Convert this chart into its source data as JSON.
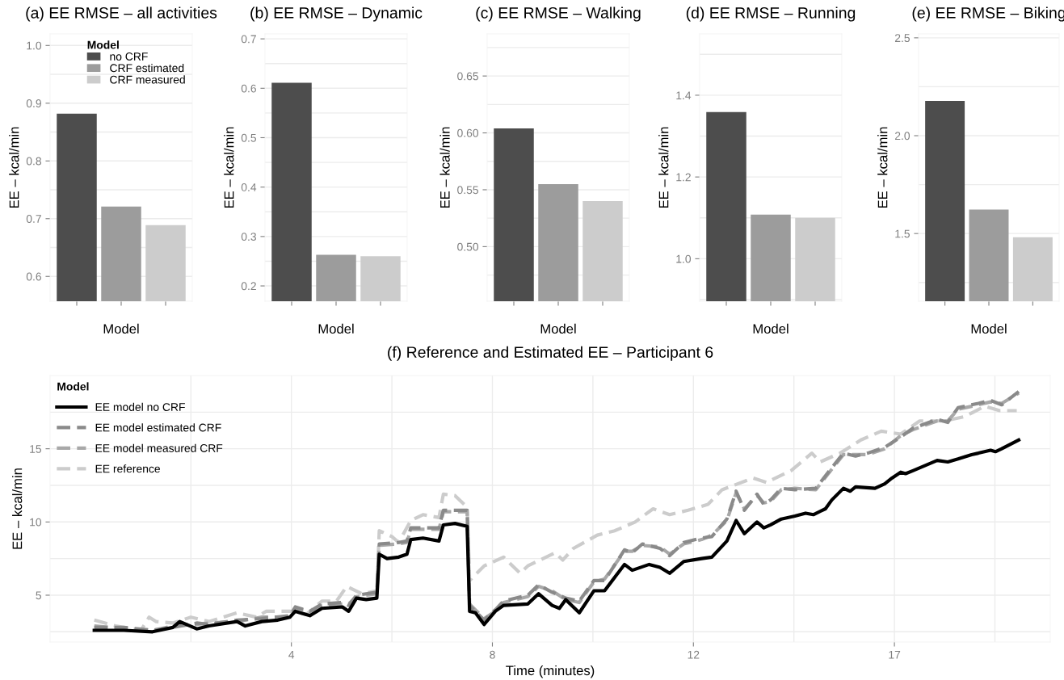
{
  "chart_data": [
    {
      "type": "bar",
      "title": "(a) EE RMSE – all activities",
      "xlabel": "Model",
      "ylabel": "EE – kcal/min",
      "categories": [
        null,
        null,
        null
      ],
      "series": [
        {
          "name": "no CRF",
          "color": "#4d4d4d",
          "values": [
            0.882,
            null,
            null
          ]
        },
        {
          "name": "CRF estimated",
          "color": "#9c9c9c",
          "values": [
            null,
            0.721,
            null
          ]
        },
        {
          "name": "CRF measured",
          "color": "#cccccc",
          "values": [
            null,
            null,
            0.689
          ]
        }
      ],
      "legend_title": "Model",
      "legend": "top right",
      "ylim": [
        0.557,
        1.02
      ],
      "yticks": [
        0.6,
        0.7,
        0.8,
        0.9,
        {
          "value": 1.0,
          "label": "1.0"
        }
      ],
      "grid": "y",
      "tick_labels": "y"
    },
    {
      "type": "bar",
      "title": "(b) EE RMSE – Dynamic",
      "xlabel": "Model",
      "ylabel": "EE – kcal/min",
      "categories": [
        null,
        null,
        null
      ],
      "values": [
        0.611,
        0.263,
        0.26
      ],
      "colors": [
        "#4d4d4d",
        "#9c9c9c",
        "#cccccc"
      ],
      "ylim": [
        0.169,
        0.71
      ],
      "yticks": [
        0.2,
        0.3,
        0.4,
        0.5,
        0.6,
        0.7
      ],
      "grid": "y",
      "tick_labels": "y"
    },
    {
      "type": "bar",
      "title": "(c) EE RMSE – Walking",
      "xlabel": "Model",
      "ylabel": "EE – kcal/min",
      "categories": [
        null,
        null,
        null
      ],
      "values": [
        0.604,
        0.555,
        0.54
      ],
      "colors": [
        "#4d4d4d",
        "#9c9c9c",
        "#cccccc"
      ],
      "ylim": [
        0.452,
        0.687
      ],
      "yticks": [
        {
          "value": 0.5,
          "label": "0.50"
        },
        {
          "value": 0.55,
          "label": "0.55"
        },
        {
          "value": 0.6,
          "label": "0.60"
        },
        {
          "value": 0.65,
          "label": "0.65"
        }
      ],
      "grid": "y",
      "tick_labels": "y"
    },
    {
      "type": "bar",
      "title": "(d) EE RMSE – Running",
      "xlabel": "Model",
      "ylabel": "EE – kcal/min",
      "categories": [
        null,
        null,
        null
      ],
      "values": [
        1.359,
        1.108,
        1.1
      ],
      "colors": [
        "#4d4d4d",
        "#9c9c9c",
        "#cccccc"
      ],
      "ylim": [
        0.896,
        1.55
      ],
      "yticks": [
        {
          "value": 1.0,
          "label": "1.0"
        },
        1.2,
        1.4
      ],
      "grid": "y",
      "tick_labels": "y"
    },
    {
      "type": "bar",
      "title": "(e) EE RMSE – Biking",
      "xlabel": "Model",
      "ylabel": "EE – kcal/min",
      "categories": [
        null,
        null,
        null
      ],
      "values": [
        2.177,
        1.622,
        1.481
      ],
      "colors": [
        "#4d4d4d",
        "#9c9c9c",
        "#cccccc"
      ],
      "ylim": [
        1.154,
        2.52
      ],
      "yticks": [
        1.5,
        {
          "value": 2.0,
          "label": "2.0"
        },
        2.5
      ],
      "grid": "y",
      "tick_labels": "y"
    },
    {
      "type": "line",
      "title": "(f) Reference and Estimated EE – Participant 6",
      "xlabel": "Time (minutes)",
      "ylabel": "EE – kcal/min",
      "legend_title": "Model",
      "legend": "top left",
      "grid": true,
      "xlim": [
        -0.83,
        19.77
      ],
      "xticks": [
        {
          "value": 4.14,
          "label": "4"
        },
        {
          "value": 8.28,
          "label": "8"
        },
        {
          "value": 12.42,
          "label": "12"
        },
        {
          "value": 16.56,
          "label": "17"
        }
      ],
      "ylim": [
        1.8,
        20
      ],
      "yticks": [
        5,
        10,
        15
      ],
      "series": [
        {
          "name": "EE model no CRF",
          "color": "#000000",
          "line_style": "solid",
          "x": [
            0.08,
            0.69,
            1.28,
            1.7,
            1.84,
            2.19,
            2.44,
            3.02,
            3.19,
            3.53,
            3.86,
            4.11,
            4.22,
            4.52,
            4.77,
            5.19,
            5.32,
            5.48,
            5.68,
            5.9,
            5.95,
            6.11,
            6.35,
            6.52,
            6.6,
            6.85,
            7.18,
            7.27,
            7.51,
            7.76,
            7.81,
            7.93,
            8.11,
            8.34,
            8.51,
            9.01,
            9.23,
            9.51,
            9.66,
            9.79,
            10.07,
            10.37,
            10.59,
            11.0,
            11.16,
            11.51,
            11.73,
            11.93,
            12.22,
            12.59,
            12.8,
            13.11,
            13.3,
            13.47,
            13.73,
            13.87,
            14.01,
            14.23,
            14.51,
            14.73,
            14.89,
            15.14,
            15.27,
            15.51,
            15.65,
            15.76,
            16.16,
            16.36,
            16.51,
            16.69,
            16.79,
            16.94,
            17.44,
            17.66,
            17.87,
            18.15,
            18.29,
            18.54,
            18.64,
            18.77,
            19.12
          ],
          "values": [
            2.6,
            2.6,
            2.5,
            2.8,
            3.2,
            2.7,
            2.9,
            3.2,
            2.9,
            3.2,
            3.3,
            3.5,
            3.9,
            3.6,
            4.1,
            4.2,
            3.9,
            4.8,
            4.7,
            4.8,
            7.8,
            7.5,
            7.6,
            7.8,
            8.8,
            8.9,
            8.7,
            9.8,
            9.9,
            9.7,
            3.9,
            3.8,
            3.0,
            3.9,
            4.3,
            4.4,
            5.1,
            4.3,
            4.1,
            4.7,
            3.8,
            5.3,
            5.3,
            7.1,
            6.7,
            7.1,
            6.9,
            6.5,
            7.3,
            7.5,
            7.6,
            8.7,
            10.1,
            9.2,
            10.0,
            9.6,
            9.8,
            10.2,
            10.4,
            10.6,
            10.5,
            10.9,
            11.5,
            12.3,
            12.1,
            12.4,
            12.3,
            12.6,
            13.0,
            13.4,
            13.3,
            13.5,
            14.2,
            14.1,
            14.3,
            14.6,
            14.7,
            14.9,
            14.8,
            15.0,
            15.6
          ]
        },
        {
          "name": "EE model estimated CRF",
          "color": "#8a8a8a",
          "line_style": "dashed",
          "x": [
            0.08,
            0.69,
            1.28,
            1.7,
            2.19,
            2.44,
            3.02,
            3.53,
            4.11,
            4.22,
            4.52,
            4.77,
            5.19,
            5.32,
            5.48,
            5.9,
            5.95,
            6.35,
            6.52,
            6.6,
            7.18,
            7.27,
            7.76,
            7.81,
            8.11,
            8.34,
            8.51,
            9.01,
            9.23,
            9.51,
            9.79,
            10.07,
            10.37,
            10.59,
            11.0,
            11.16,
            11.37,
            11.73,
            11.93,
            12.22,
            12.59,
            12.8,
            13.11,
            13.3,
            13.47,
            13.73,
            13.87,
            14.01,
            14.23,
            14.51,
            14.94,
            15.27,
            15.51,
            15.76,
            16.01,
            16.36,
            16.69,
            16.94,
            17.44,
            17.66,
            17.87,
            18.29,
            18.54,
            18.77,
            19.12
          ],
          "values": [
            2.8,
            2.8,
            2.6,
            2.8,
            3.1,
            3.0,
            3.3,
            3.4,
            3.6,
            4.2,
            3.9,
            4.4,
            4.5,
            4.3,
            5.0,
            5.2,
            8.5,
            8.6,
            8.7,
            9.6,
            9.6,
            10.8,
            10.8,
            4.3,
            3.3,
            4.0,
            4.6,
            5.0,
            5.7,
            5.2,
            4.8,
            4.6,
            6.0,
            6.0,
            8.1,
            7.9,
            8.5,
            8.2,
            7.7,
            8.6,
            8.9,
            9.0,
            10.2,
            12.1,
            10.8,
            11.9,
            11.2,
            11.5,
            12.3,
            12.2,
            12.3,
            13.7,
            14.7,
            14.5,
            14.7,
            15.1,
            15.8,
            16.4,
            17.0,
            16.8,
            17.8,
            18.1,
            18.3,
            18.0,
            18.9
          ]
        },
        {
          "name": "EE model measured CRF",
          "color": "#a8a8a8",
          "line_style": "dashed",
          "x": [
            0.08,
            0.69,
            1.28,
            1.7,
            2.19,
            2.44,
            3.02,
            3.53,
            4.11,
            4.22,
            4.52,
            4.77,
            5.19,
            5.32,
            5.48,
            5.9,
            5.95,
            6.35,
            6.52,
            6.6,
            7.18,
            7.27,
            7.76,
            7.81,
            8.11,
            8.34,
            8.51,
            9.01,
            9.23,
            9.51,
            9.79,
            10.07,
            10.37,
            10.59,
            11.0,
            11.16,
            11.37,
            11.73,
            11.93,
            12.22,
            12.59,
            12.8,
            13.11,
            13.3,
            13.47,
            13.73,
            13.87,
            14.01,
            14.23,
            14.51,
            14.94,
            15.27,
            15.51,
            15.76,
            16.01,
            16.36,
            16.69,
            16.94,
            17.44,
            17.66,
            17.87,
            18.29,
            18.54,
            18.77,
            19.12
          ],
          "values": [
            2.9,
            2.7,
            2.6,
            2.9,
            3.0,
            3.1,
            3.2,
            3.5,
            3.5,
            4.1,
            3.9,
            4.3,
            4.4,
            4.4,
            4.9,
            5.1,
            8.4,
            8.5,
            8.6,
            9.5,
            9.5,
            10.7,
            10.7,
            4.4,
            3.4,
            3.9,
            4.5,
            4.9,
            5.6,
            5.3,
            4.7,
            4.5,
            5.9,
            6.1,
            8.0,
            8.0,
            8.4,
            8.3,
            7.8,
            8.5,
            8.8,
            9.1,
            10.1,
            12.0,
            10.9,
            11.8,
            11.3,
            11.4,
            12.2,
            12.3,
            12.2,
            13.6,
            14.6,
            14.6,
            14.6,
            15.0,
            15.9,
            16.3,
            16.9,
            16.9,
            17.7,
            18.0,
            18.2,
            18.1,
            18.8
          ]
        },
        {
          "name": "EE reference",
          "color": "#cccccc",
          "line_style": "dashed",
          "x": [
            0.08,
            0.52,
            1.04,
            1.21,
            1.35,
            1.7,
            2.07,
            2.44,
            3.02,
            3.42,
            3.62,
            4.11,
            4.45,
            4.77,
            5.07,
            5.28,
            5.59,
            5.9,
            5.95,
            6.21,
            6.35,
            6.6,
            6.85,
            7.18,
            7.27,
            7.51,
            7.76,
            7.81,
            8.11,
            8.51,
            8.85,
            9.01,
            9.57,
            9.73,
            9.95,
            10.44,
            10.8,
            11.22,
            11.59,
            11.93,
            12.31,
            12.72,
            13.01,
            13.65,
            13.92,
            14.43,
            14.86,
            15.03,
            15.44,
            15.87,
            16.29,
            16.69,
            17.08,
            17.6,
            18.01,
            18.42,
            18.73,
            19.08
          ],
          "values": [
            3.3,
            2.9,
            2.6,
            3.5,
            3.2,
            3.1,
            3.5,
            3.2,
            3.8,
            3.5,
            3.9,
            3.9,
            3.7,
            4.6,
            4.6,
            5.6,
            5.1,
            5.3,
            9.4,
            9.0,
            8.6,
            10.1,
            10.5,
            10.3,
            11.9,
            11.8,
            11.0,
            6.0,
            7.0,
            7.6,
            6.5,
            7.0,
            7.9,
            7.4,
            8.2,
            9.1,
            9.4,
            10.0,
            10.9,
            10.5,
            10.8,
            11.2,
            12.2,
            13.0,
            12.7,
            13.5,
            14.7,
            14.1,
            14.7,
            15.6,
            16.2,
            16.0,
            16.9,
            16.9,
            17.2,
            17.9,
            17.6,
            17.6
          ]
        }
      ]
    }
  ]
}
